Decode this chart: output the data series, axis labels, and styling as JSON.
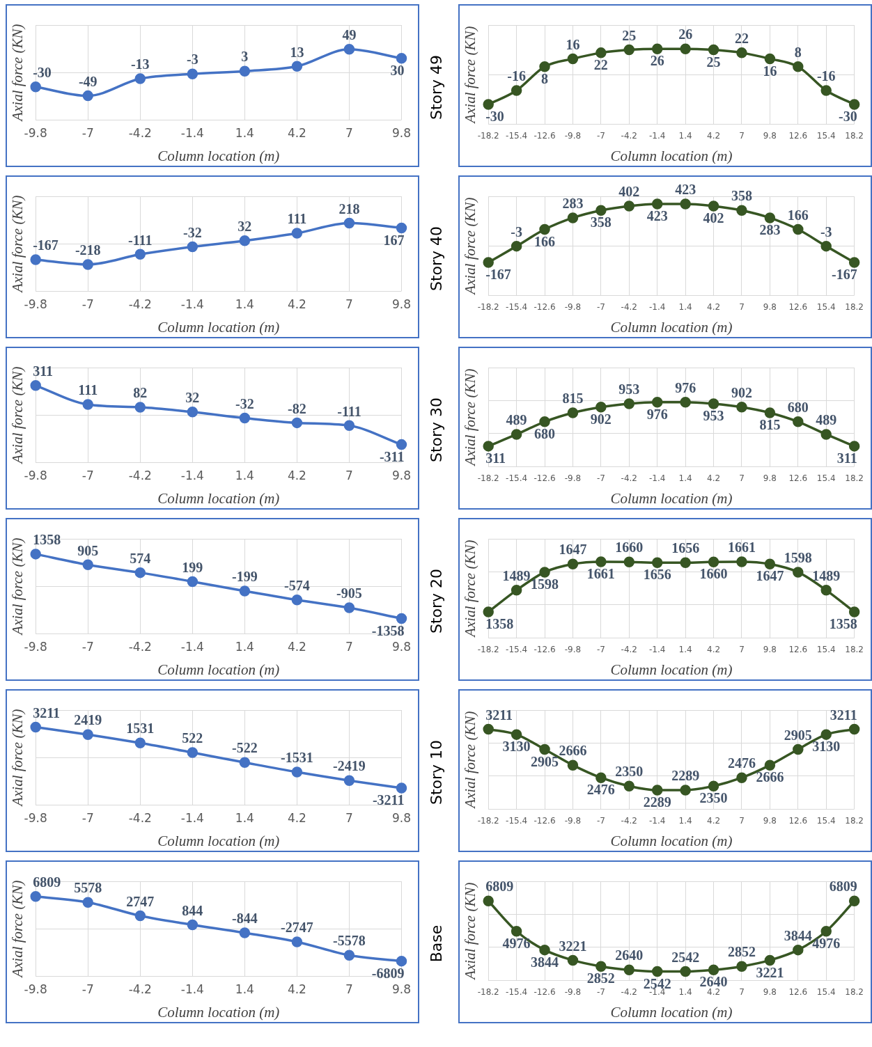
{
  "chart_data": [
    {
      "type": "line",
      "xlabel": "Column location (m)",
      "ylabel": "Axial force (KN)",
      "categories": [
        "-9.8",
        "-7",
        "-4.2",
        "-1.4",
        "1.4",
        "4.2",
        "7",
        "9.8"
      ],
      "values": [
        -30,
        -49,
        -13,
        -3,
        3,
        13,
        49,
        30
      ],
      "color": "#4472c4",
      "data_labels": true,
      "marker": "circle",
      "line_style": "solid",
      "grid": true,
      "tick_labels": "x"
    },
    {
      "type": "line",
      "title": "Story 49",
      "xlabel": "Column location (m)",
      "ylabel": "Axial force (KN)",
      "categories": [
        "-18.2",
        "-15.4",
        "-12.6",
        "-9.8",
        "-7",
        "-4.2",
        "-1.4",
        "1.4",
        "4.2",
        "7",
        "9.8",
        "12.6",
        "15.4",
        "18.2"
      ],
      "values": [
        -30,
        -16,
        8,
        16,
        22,
        25,
        26,
        26,
        25,
        22,
        16,
        8,
        -16,
        -30
      ],
      "color": "#375623",
      "data_labels": true,
      "marker": "circle",
      "line_style": "solid",
      "grid": true,
      "tick_labels": "x"
    },
    {
      "type": "line",
      "xlabel": "Column location (m)",
      "ylabel": "Axial force (KN)",
      "categories": [
        "-9.8",
        "-7",
        "-4.2",
        "-1.4",
        "1.4",
        "4.2",
        "7",
        "9.8"
      ],
      "values": [
        -167,
        -218,
        -111,
        -32,
        32,
        111,
        218,
        167
      ],
      "color": "#4472c4",
      "data_labels": true,
      "marker": "circle",
      "line_style": "solid",
      "grid": true,
      "tick_labels": "x"
    },
    {
      "type": "line",
      "title": "Story 40",
      "xlabel": "Column location (m)",
      "ylabel": "Axial force (KN)",
      "categories": [
        "-18.2",
        "-15.4",
        "-12.6",
        "-9.8",
        "-7",
        "-4.2",
        "-1.4",
        "1.4",
        "4.2",
        "7",
        "9.8",
        "12.6",
        "15.4",
        "18.2"
      ],
      "values": [
        -167,
        -3,
        166,
        283,
        358,
        402,
        423,
        423,
        402,
        358,
        283,
        166,
        -3,
        -167
      ],
      "color": "#375623",
      "data_labels": true,
      "marker": "circle",
      "line_style": "solid",
      "grid": true,
      "tick_labels": "x"
    },
    {
      "type": "line",
      "xlabel": "Column location (m)",
      "ylabel": "Axial force (KN)",
      "categories": [
        "-9.8",
        "-7",
        "-4.2",
        "-1.4",
        "1.4",
        "4.2",
        "7",
        "9.8"
      ],
      "values": [
        311,
        111,
        82,
        32,
        -32,
        -82,
        -111,
        -311
      ],
      "color": "#4472c4",
      "data_labels": true,
      "marker": "circle",
      "line_style": "solid",
      "grid": true,
      "tick_labels": "x"
    },
    {
      "type": "line",
      "title": "Story 30",
      "xlabel": "Column location (m)",
      "ylabel": "Axial force (KN)",
      "categories": [
        "-18.2",
        "-15.4",
        "-12.6",
        "-9.8",
        "-7",
        "-4.2",
        "-1.4",
        "1.4",
        "4.2",
        "7",
        "9.8",
        "12.6",
        "15.4",
        "18.2"
      ],
      "values": [
        311,
        489,
        680,
        815,
        902,
        953,
        976,
        976,
        953,
        902,
        815,
        680,
        489,
        311
      ],
      "color": "#375623",
      "data_labels": true,
      "marker": "circle",
      "line_style": "solid",
      "grid": true,
      "tick_labels": "x"
    },
    {
      "type": "line",
      "xlabel": "Column location (m)",
      "ylabel": "Axial force (KN)",
      "categories": [
        "-9.8",
        "-7",
        "-4.2",
        "-1.4",
        "1.4",
        "4.2",
        "7",
        "9.8"
      ],
      "values": [
        1358,
        905,
        574,
        199,
        -199,
        -574,
        -905,
        -1358
      ],
      "color": "#4472c4",
      "data_labels": true,
      "marker": "circle",
      "line_style": "solid",
      "grid": true,
      "tick_labels": "x"
    },
    {
      "type": "line",
      "title": "Story 20",
      "xlabel": "Column location (m)",
      "ylabel": "Axial force (KN)",
      "categories": [
        "-18.2",
        "-15.4",
        "-12.6",
        "-9.8",
        "-7",
        "-4.2",
        "-1.4",
        "1.4",
        "4.2",
        "7",
        "9.8",
        "12.6",
        "15.4",
        "18.2"
      ],
      "values": [
        1358,
        1489,
        1598,
        1647,
        1661,
        1660,
        1656,
        1656,
        1660,
        1661,
        1647,
        1598,
        1489,
        1358
      ],
      "color": "#375623",
      "data_labels": true,
      "marker": "circle",
      "line_style": "solid",
      "grid": true,
      "tick_labels": "x"
    },
    {
      "type": "line",
      "xlabel": "Column location (m)",
      "ylabel": "Axial force (KN)",
      "categories": [
        "-9.8",
        "-7",
        "-4.2",
        "-1.4",
        "1.4",
        "4.2",
        "7",
        "9.8"
      ],
      "values": [
        3211,
        2419,
        1531,
        522,
        -522,
        -1531,
        -2419,
        -3211
      ],
      "color": "#4472c4",
      "data_labels": true,
      "marker": "circle",
      "line_style": "solid",
      "grid": true,
      "tick_labels": "x"
    },
    {
      "type": "line",
      "title": "Story 10",
      "xlabel": "Column location (m)",
      "ylabel": "Axial force (KN)",
      "categories": [
        "-18.2",
        "-15.4",
        "-12.6",
        "-9.8",
        "-7",
        "-4.2",
        "-1.4",
        "1.4",
        "4.2",
        "7",
        "9.8",
        "12.6",
        "15.4",
        "18.2"
      ],
      "values": [
        3211,
        3130,
        2905,
        2666,
        2476,
        2350,
        2289,
        2289,
        2350,
        2476,
        2666,
        2905,
        3130,
        3211
      ],
      "color": "#375623",
      "data_labels": true,
      "marker": "circle",
      "line_style": "solid",
      "grid": true,
      "tick_labels": "x"
    },
    {
      "type": "line",
      "xlabel": "Column location (m)",
      "ylabel": "Axial force (KN)",
      "categories": [
        "-9.8",
        "-7",
        "-4.2",
        "-1.4",
        "1.4",
        "4.2",
        "7",
        "9.8"
      ],
      "values": [
        6809,
        5578,
        2747,
        844,
        -844,
        -2747,
        -5578,
        -6809
      ],
      "color": "#4472c4",
      "data_labels": true,
      "marker": "circle",
      "line_style": "solid",
      "grid": true,
      "tick_labels": "x"
    },
    {
      "type": "line",
      "title": "Base",
      "xlabel": "Column location (m)",
      "ylabel": "Axial force (KN)",
      "categories": [
        "-18.2",
        "-15.4",
        "-12.6",
        "-9.8",
        "-7",
        "-4.2",
        "-1.4",
        "1.4",
        "4.2",
        "7",
        "9.8",
        "12.6",
        "15.4",
        "18.2"
      ],
      "values": [
        6809,
        4976,
        3844,
        3221,
        2852,
        2640,
        2542,
        2542,
        2640,
        2852,
        3221,
        3844,
        4976,
        6809
      ],
      "color": "#375623",
      "data_labels": true,
      "marker": "circle",
      "line_style": "solid",
      "grid": true,
      "tick_labels": "x"
    }
  ]
}
